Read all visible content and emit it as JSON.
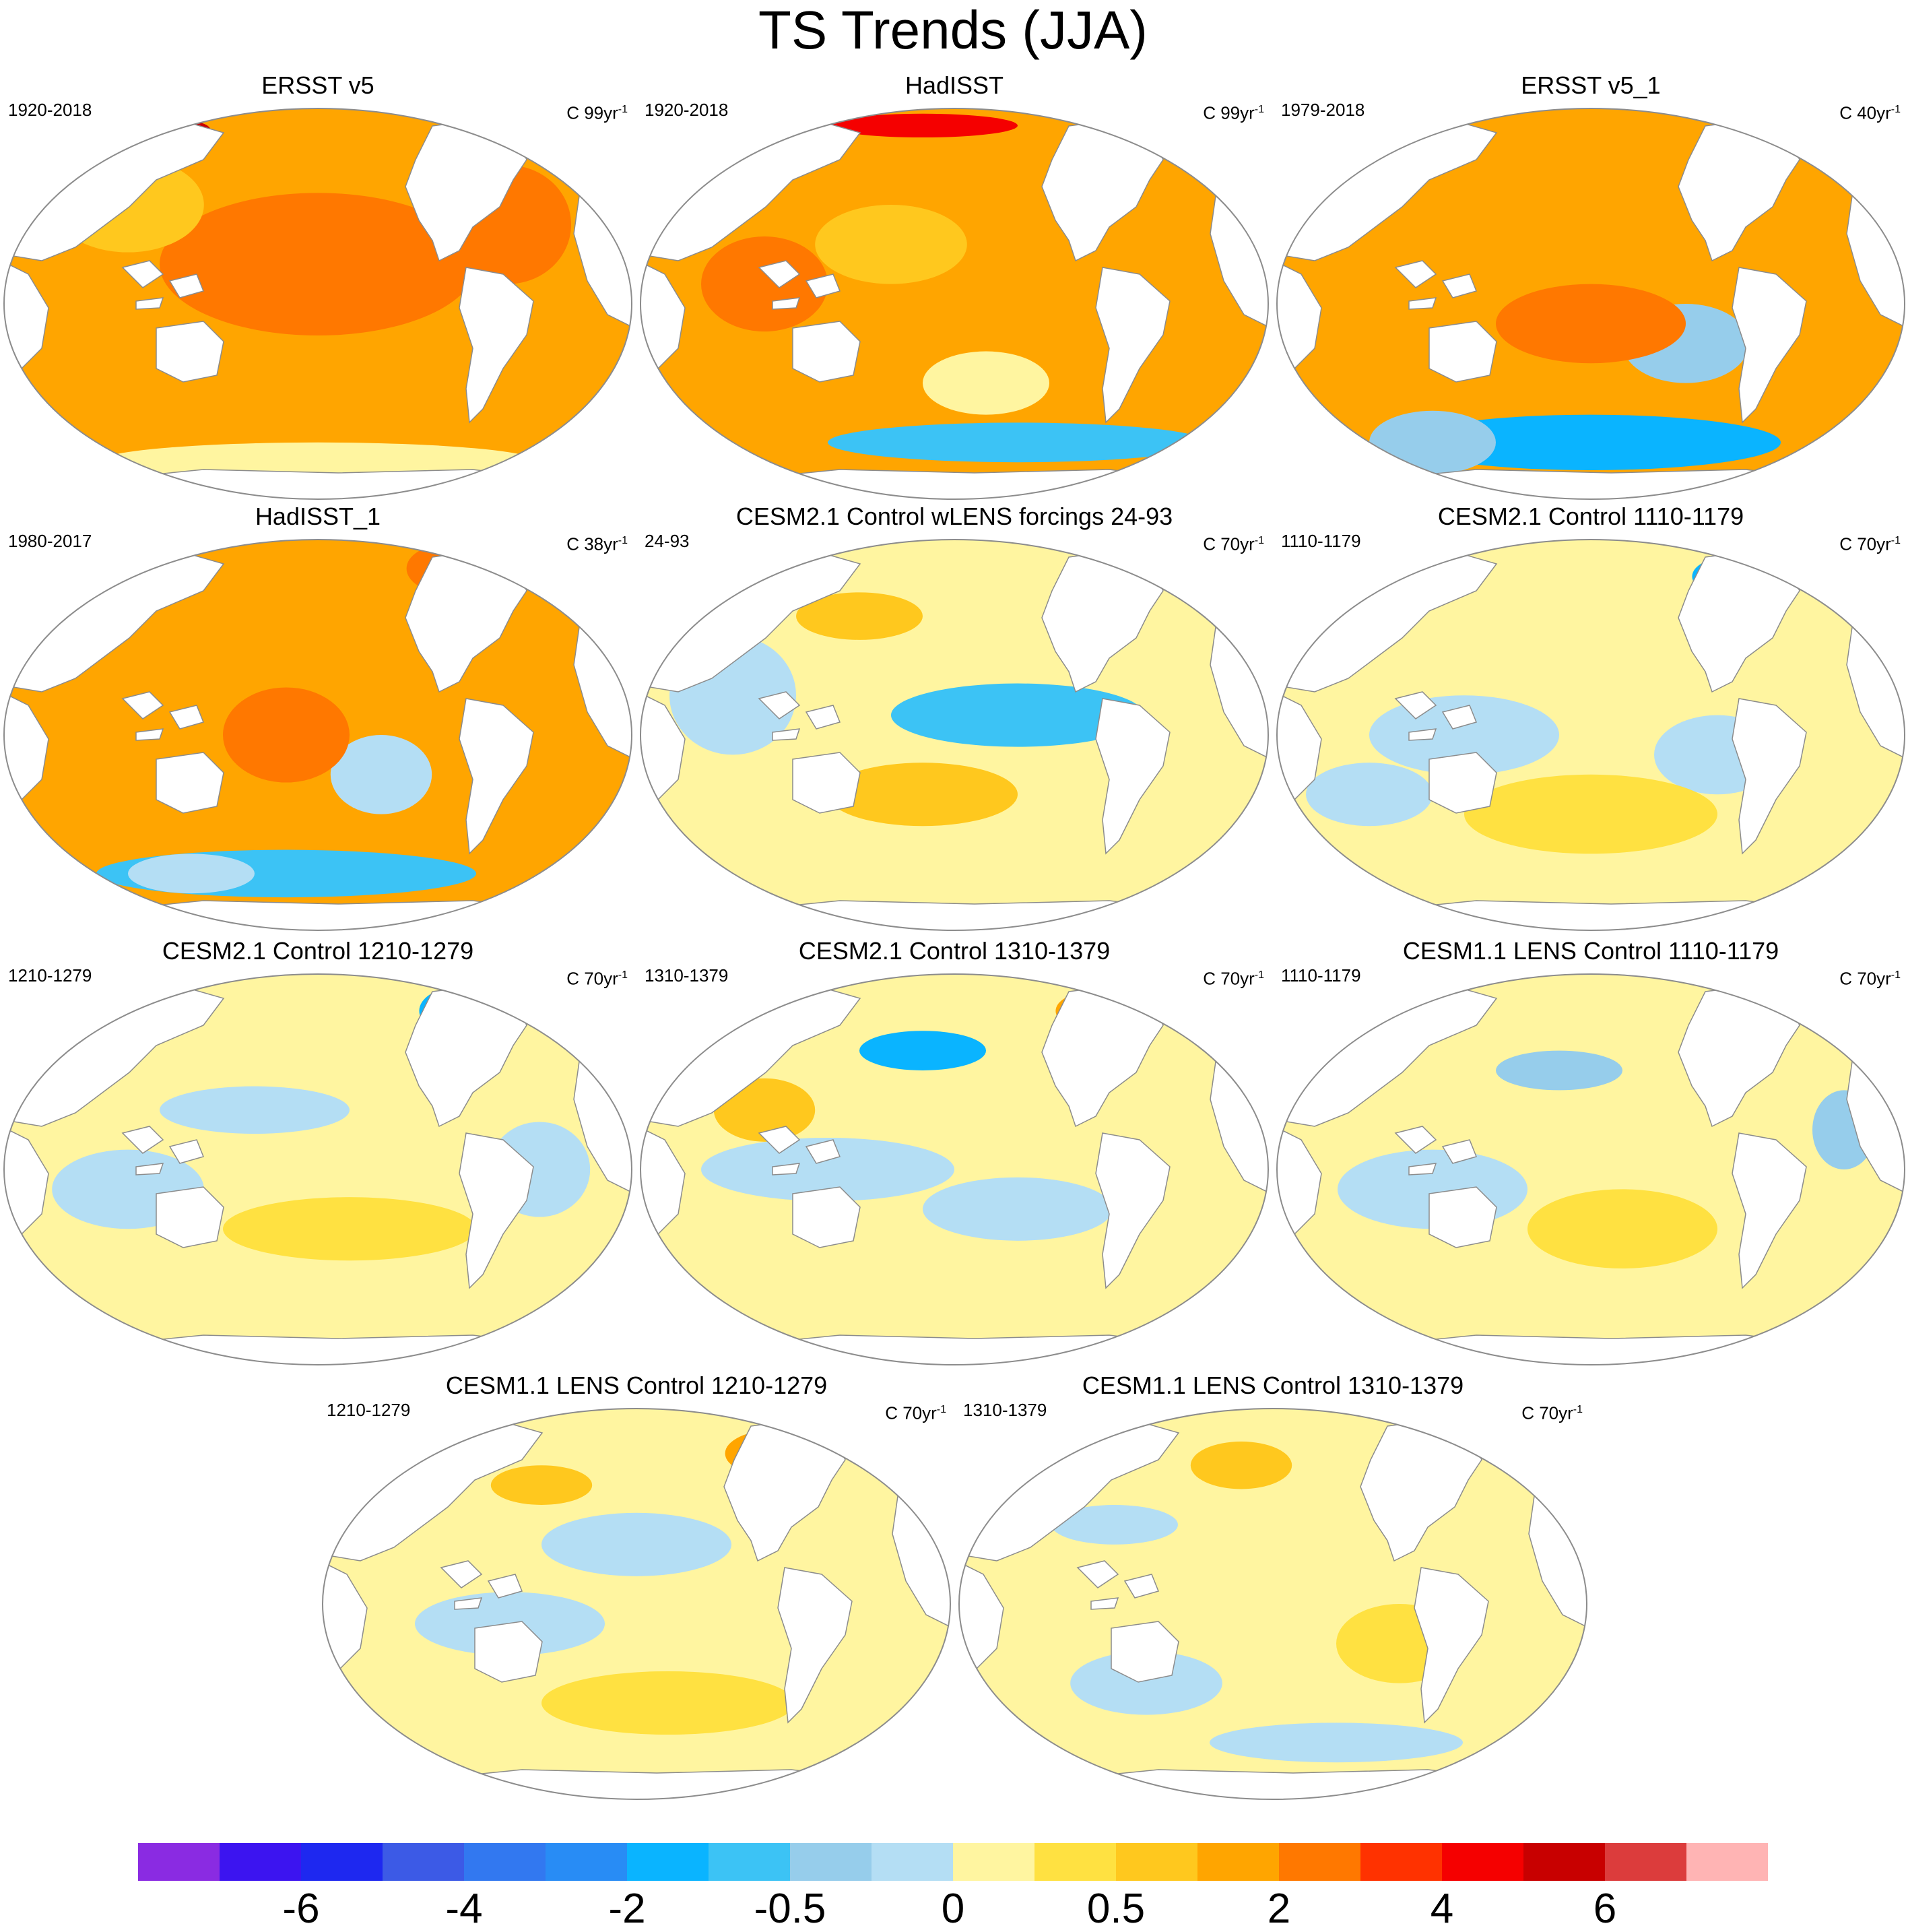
{
  "title": "TS Trends (JJA)",
  "colors": {
    "levels": [
      "#8a2be2",
      "#3c14f0",
      "#1e28f0",
      "#3c5ae6",
      "#3278f0",
      "#288cf5",
      "#0ab4ff",
      "#3cc3f5",
      "#96cdeb",
      "#b4def4",
      "#fff5a0",
      "#ffe141",
      "#ffc81e",
      "#ffa500",
      "#ff7800",
      "#ff3200",
      "#f50000",
      "#c80000",
      "#dc3c3c",
      "#ffb4b4"
    ],
    "ocean_base": "#fff5a0",
    "land": "#ffffff",
    "outline": "#8c8c8c"
  },
  "panels": [
    {
      "title": "ERSST v5",
      "left": "1920-2018",
      "units": "C 99yr",
      "sup": "-1",
      "base": 13,
      "patches": [
        [
          0.5,
          0.4,
          0.25,
          0.18,
          14
        ],
        [
          0.2,
          0.25,
          0.12,
          0.12,
          12
        ],
        [
          0.8,
          0.3,
          0.1,
          0.15,
          14
        ],
        [
          0.5,
          0.9,
          0.35,
          0.05,
          10
        ],
        [
          0.25,
          0.06,
          0.08,
          0.03,
          17
        ]
      ]
    },
    {
      "title": "HadISST",
      "left": "1920-2018",
      "units": "C 99yr",
      "sup": "-1",
      "base": 13,
      "patches": [
        [
          0.4,
          0.35,
          0.12,
          0.1,
          12
        ],
        [
          0.55,
          0.7,
          0.1,
          0.08,
          10
        ],
        [
          0.6,
          0.85,
          0.3,
          0.05,
          7
        ],
        [
          0.45,
          0.05,
          0.15,
          0.03,
          16
        ],
        [
          0.2,
          0.45,
          0.1,
          0.12,
          14
        ]
      ]
    },
    {
      "title": "ERSST v5_1",
      "left": "1979-2018",
      "units": "C 40yr",
      "sup": "-1",
      "base": 13,
      "patches": [
        [
          0.5,
          0.85,
          0.3,
          0.07,
          6
        ],
        [
          0.65,
          0.6,
          0.1,
          0.1,
          8
        ],
        [
          0.25,
          0.85,
          0.1,
          0.08,
          8
        ],
        [
          0.5,
          0.55,
          0.15,
          0.1,
          14
        ],
        [
          0.75,
          0.12,
          0.05,
          0.06,
          15
        ]
      ]
    },
    {
      "title": "HadISST_1",
      "left": "1980-2017",
      "units": "C 38yr",
      "sup": "-1",
      "base": 13,
      "patches": [
        [
          0.45,
          0.85,
          0.3,
          0.06,
          7
        ],
        [
          0.6,
          0.6,
          0.08,
          0.1,
          9
        ],
        [
          0.3,
          0.85,
          0.1,
          0.05,
          9
        ],
        [
          0.45,
          0.5,
          0.1,
          0.12,
          14
        ],
        [
          0.7,
          0.08,
          0.06,
          0.06,
          14
        ]
      ]
    },
    {
      "title": "CESM2.1 Control wLENS forcings 24-93",
      "left": "24-93",
      "units": "C 70yr",
      "sup": "-1",
      "base": 10,
      "patches": [
        [
          0.6,
          0.45,
          0.2,
          0.08,
          7
        ],
        [
          0.45,
          0.65,
          0.15,
          0.08,
          12
        ],
        [
          0.35,
          0.2,
          0.1,
          0.06,
          12
        ],
        [
          0.15,
          0.4,
          0.1,
          0.15,
          9
        ],
        [
          0.75,
          0.1,
          0.06,
          0.06,
          13
        ]
      ]
    },
    {
      "title": "CESM2.1 Control 1110-1179",
      "left": "1110-1179",
      "units": "C 70yr",
      "sup": "-1",
      "base": 10,
      "patches": [
        [
          0.72,
          0.1,
          0.06,
          0.05,
          6
        ],
        [
          0.3,
          0.5,
          0.15,
          0.1,
          9
        ],
        [
          0.7,
          0.55,
          0.1,
          0.1,
          9
        ],
        [
          0.5,
          0.7,
          0.2,
          0.1,
          11
        ],
        [
          0.15,
          0.65,
          0.1,
          0.08,
          9
        ]
      ]
    },
    {
      "title": "CESM2.1 Control 1210-1279",
      "left": "1210-1279",
      "units": "C 70yr",
      "sup": "-1",
      "base": 10,
      "patches": [
        [
          0.72,
          0.1,
          0.06,
          0.06,
          6
        ],
        [
          0.4,
          0.35,
          0.15,
          0.06,
          9
        ],
        [
          0.2,
          0.55,
          0.12,
          0.1,
          9
        ],
        [
          0.55,
          0.65,
          0.2,
          0.08,
          11
        ],
        [
          0.85,
          0.5,
          0.08,
          0.12,
          9
        ]
      ]
    },
    {
      "title": "CESM2.1 Control 1310-1379",
      "left": "1310-1379",
      "units": "C 70yr",
      "sup": "-1",
      "base": 10,
      "patches": [
        [
          0.45,
          0.2,
          0.1,
          0.05,
          6
        ],
        [
          0.72,
          0.1,
          0.06,
          0.05,
          13
        ],
        [
          0.3,
          0.5,
          0.2,
          0.08,
          9
        ],
        [
          0.6,
          0.6,
          0.15,
          0.08,
          9
        ],
        [
          0.2,
          0.35,
          0.08,
          0.08,
          12
        ]
      ]
    },
    {
      "title": "CESM1.1 LENS Control 1110-1179",
      "left": "1110-1179",
      "units": "C 70yr",
      "sup": "-1",
      "base": 10,
      "patches": [
        [
          0.45,
          0.25,
          0.1,
          0.05,
          8
        ],
        [
          0.75,
          0.07,
          0.03,
          0.03,
          14
        ],
        [
          0.25,
          0.55,
          0.15,
          0.1,
          9
        ],
        [
          0.9,
          0.4,
          0.05,
          0.1,
          8
        ],
        [
          0.55,
          0.65,
          0.15,
          0.1,
          11
        ]
      ]
    },
    {
      "title": "CESM1.1 LENS Control 1210-1279",
      "left": "1210-1279",
      "units": "C 70yr",
      "sup": "-1",
      "base": 10,
      "patches": [
        [
          0.72,
          0.12,
          0.08,
          0.06,
          13
        ],
        [
          0.35,
          0.2,
          0.08,
          0.05,
          12
        ],
        [
          0.5,
          0.35,
          0.15,
          0.08,
          9
        ],
        [
          0.3,
          0.55,
          0.15,
          0.08,
          9
        ],
        [
          0.55,
          0.75,
          0.2,
          0.08,
          11
        ]
      ]
    },
    {
      "title": "CESM1.1 LENS Control 1310-1379",
      "left": "1310-1379",
      "units": "C 70yr",
      "sup": "-1",
      "base": 10,
      "patches": [
        [
          0.45,
          0.15,
          0.08,
          0.06,
          12
        ],
        [
          0.25,
          0.3,
          0.1,
          0.05,
          9
        ],
        [
          0.7,
          0.6,
          0.1,
          0.1,
          11
        ],
        [
          0.3,
          0.7,
          0.12,
          0.08,
          9
        ],
        [
          0.6,
          0.85,
          0.2,
          0.05,
          9
        ]
      ]
    }
  ],
  "colorbar": {
    "labels": [
      "-6",
      "-4",
      "-2",
      "-0.5",
      "0",
      "0.5",
      "2",
      "4",
      "6"
    ],
    "label_boundaries": [
      2,
      4,
      6,
      8,
      10,
      12,
      14,
      16,
      18
    ]
  },
  "chart_data": {
    "type": "heatmap",
    "title": "TS Trends (JJA)",
    "variable": "TS",
    "season": "JJA",
    "units": "C",
    "colorbar_labels": [
      -6,
      -4,
      -2,
      -0.5,
      0,
      0.5,
      2,
      4,
      6
    ],
    "panels": [
      {
        "title": "ERSST v5",
        "period": "1920-2018",
        "trend_units": "C 99yr-1"
      },
      {
        "title": "HadISST",
        "period": "1920-2018",
        "trend_units": "C 99yr-1"
      },
      {
        "title": "ERSST v5_1",
        "period": "1979-2018",
        "trend_units": "C 40yr-1"
      },
      {
        "title": "HadISST_1",
        "period": "1980-2017",
        "trend_units": "C 38yr-1"
      },
      {
        "title": "CESM2.1 Control wLENS forcings 24-93",
        "period": "24-93",
        "trend_units": "C 70yr-1"
      },
      {
        "title": "CESM2.1 Control 1110-1179",
        "period": "1110-1179",
        "trend_units": "C 70yr-1"
      },
      {
        "title": "CESM2.1 Control 1210-1279",
        "period": "1210-1279",
        "trend_units": "C 70yr-1"
      },
      {
        "title": "CESM2.1 Control 1310-1379",
        "period": "1310-1379",
        "trend_units": "C 70yr-1"
      },
      {
        "title": "CESM1.1 LENS Control 1110-1179",
        "period": "1110-1179",
        "trend_units": "C 70yr-1"
      },
      {
        "title": "CESM1.1 LENS Control 1210-1279",
        "period": "1210-1279",
        "trend_units": "C 70yr-1"
      },
      {
        "title": "CESM1.1 LENS Control 1310-1379",
        "period": "1310-1379",
        "trend_units": "C 70yr-1"
      }
    ]
  }
}
